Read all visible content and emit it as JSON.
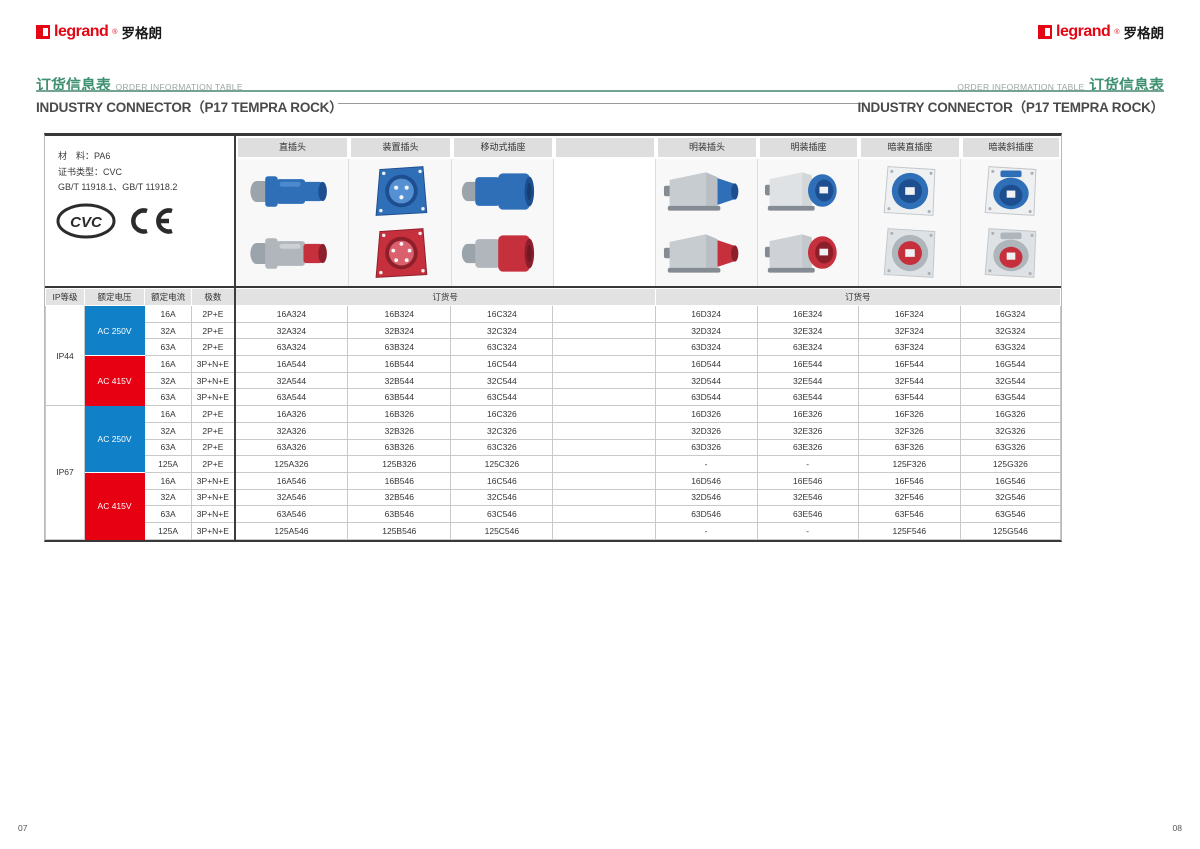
{
  "logo": {
    "brand": "legrand",
    "reg": "®",
    "cn": "罗格朗",
    "red": "#e30613"
  },
  "header": {
    "accent_green": "#3e9170",
    "left": {
      "cn": "订货信息表",
      "en": "ORDER INFORMATION TABLE",
      "subtitle": "INDUSTRY CONNECTOR（P17 TEMPRA ROCK）"
    },
    "right": {
      "cn": "订货信息表",
      "en": "ORDER INFORMATION TABLE",
      "subtitle": "INDUSTRY CONNECTOR（P17 TEMPRA ROCK）"
    }
  },
  "info_cell": {
    "lines": [
      "材　料：PA6",
      "证书类型：CVC",
      "GB/T 11918.1、GB/T 11918.2"
    ],
    "cert_cvc": "CVC",
    "cert_ce": "CE"
  },
  "product_columns": [
    {
      "label": "直插头",
      "icon": "plug-straight"
    },
    {
      "label": "装置插头",
      "icon": "plug-panel"
    },
    {
      "label": "移动式插座",
      "icon": "socket-mobile"
    },
    {
      "label": "",
      "icon": "none"
    },
    {
      "label": "明装插头",
      "icon": "plug-surface"
    },
    {
      "label": "明装插座",
      "icon": "socket-surface"
    },
    {
      "label": "暗装直插座",
      "icon": "socket-flush"
    },
    {
      "label": "暗装斜插座",
      "icon": "socket-flush-angled"
    }
  ],
  "table": {
    "headers": {
      "ip": "IP等级",
      "voltage": "额定电压",
      "current": "额定电流",
      "poles": "极数",
      "order_no": "订货号"
    },
    "colors": {
      "ac250": "#1080c8",
      "ac415": "#e60012"
    },
    "sections": [
      {
        "ip": "IP44",
        "groups": [
          {
            "voltage": "AC 250V",
            "color": "ac250",
            "rows": [
              {
                "current": "16A",
                "poles": "2P+E",
                "orders": [
                  "16A324",
                  "16B324",
                  "16C324",
                  "",
                  "16D324",
                  "16E324",
                  "16F324",
                  "16G324"
                ]
              },
              {
                "current": "32A",
                "poles": "2P+E",
                "orders": [
                  "32A324",
                  "32B324",
                  "32C324",
                  "",
                  "32D324",
                  "32E324",
                  "32F324",
                  "32G324"
                ]
              },
              {
                "current": "63A",
                "poles": "2P+E",
                "orders": [
                  "63A324",
                  "63B324",
                  "63C324",
                  "",
                  "63D324",
                  "63E324",
                  "63F324",
                  "63G324"
                ]
              }
            ]
          },
          {
            "voltage": "AC 415V",
            "color": "ac415",
            "rows": [
              {
                "current": "16A",
                "poles": "3P+N+E",
                "orders": [
                  "16A544",
                  "16B544",
                  "16C544",
                  "",
                  "16D544",
                  "16E544",
                  "16F544",
                  "16G544"
                ]
              },
              {
                "current": "32A",
                "poles": "3P+N+E",
                "orders": [
                  "32A544",
                  "32B544",
                  "32C544",
                  "",
                  "32D544",
                  "32E544",
                  "32F544",
                  "32G544"
                ]
              },
              {
                "current": "63A",
                "poles": "3P+N+E",
                "orders": [
                  "63A544",
                  "63B544",
                  "63C544",
                  "",
                  "63D544",
                  "63E544",
                  "63F544",
                  "63G544"
                ]
              }
            ]
          }
        ]
      },
      {
        "ip": "IP67",
        "groups": [
          {
            "voltage": "AC 250V",
            "color": "ac250",
            "rows": [
              {
                "current": "16A",
                "poles": "2P+E",
                "orders": [
                  "16A326",
                  "16B326",
                  "16C326",
                  "",
                  "16D326",
                  "16E326",
                  "16F326",
                  "16G326"
                ]
              },
              {
                "current": "32A",
                "poles": "2P+E",
                "orders": [
                  "32A326",
                  "32B326",
                  "32C326",
                  "",
                  "32D326",
                  "32E326",
                  "32F326",
                  "32G326"
                ]
              },
              {
                "current": "63A",
                "poles": "2P+E",
                "orders": [
                  "63A326",
                  "63B326",
                  "63C326",
                  "",
                  "63D326",
                  "63E326",
                  "63F326",
                  "63G326"
                ]
              },
              {
                "current": "125A",
                "poles": "2P+E",
                "orders": [
                  "125A326",
                  "125B326",
                  "125C326",
                  "",
                  "-",
                  "-",
                  "125F326",
                  "125G326"
                ]
              }
            ]
          },
          {
            "voltage": "AC 415V",
            "color": "ac415",
            "rows": [
              {
                "current": "16A",
                "poles": "3P+N+E",
                "orders": [
                  "16A546",
                  "16B546",
                  "16C546",
                  "",
                  "16D546",
                  "16E546",
                  "16F546",
                  "16G546"
                ]
              },
              {
                "current": "32A",
                "poles": "3P+N+E",
                "orders": [
                  "32A546",
                  "32B546",
                  "32C546",
                  "",
                  "32D546",
                  "32E546",
                  "32F546",
                  "32G546"
                ]
              },
              {
                "current": "63A",
                "poles": "3P+N+E",
                "orders": [
                  "63A546",
                  "63B546",
                  "63C546",
                  "",
                  "63D546",
                  "63E546",
                  "63F546",
                  "63G546"
                ]
              },
              {
                "current": "125A",
                "poles": "3P+N+E",
                "orders": [
                  "125A546",
                  "125B546",
                  "125C546",
                  "",
                  "-",
                  "-",
                  "125F546",
                  "125G546"
                ]
              }
            ]
          }
        ]
      }
    ]
  },
  "footer": {
    "page_left": "07",
    "page_right": "08"
  }
}
